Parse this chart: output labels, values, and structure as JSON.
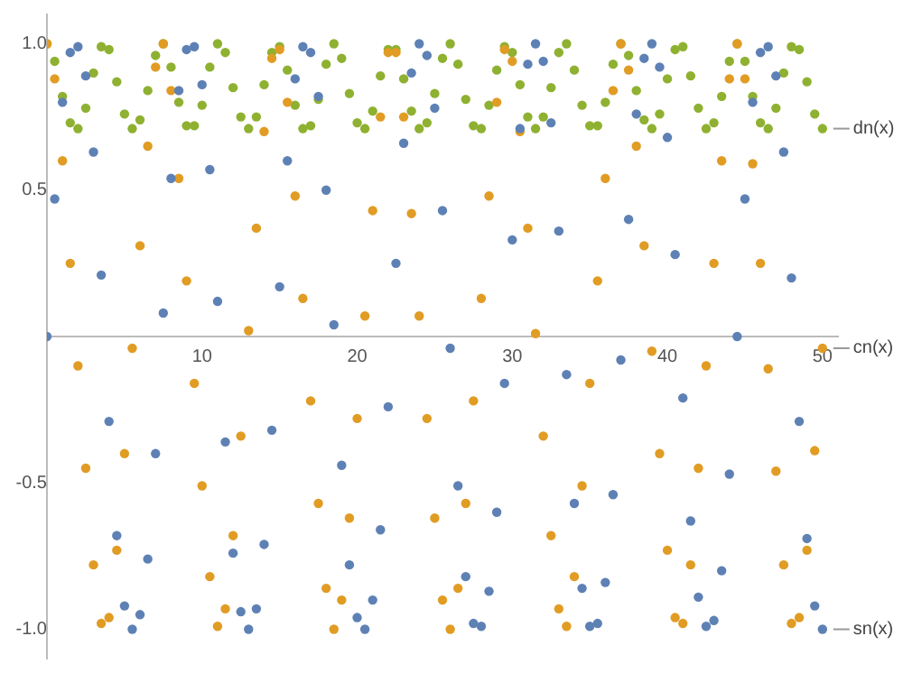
{
  "chart_data": {
    "type": "scatter",
    "marker": "circle",
    "x": [
      0,
      0.5,
      1,
      1.5,
      2,
      2.5,
      3,
      3.5,
      4,
      4.5,
      5,
      5.5,
      6,
      6.5,
      7,
      7.5,
      8,
      8.5,
      9,
      9.5,
      10,
      10.5,
      11,
      11.5,
      12,
      12.5,
      13,
      13.5,
      14,
      14.5,
      15,
      15.5,
      16,
      16.5,
      17,
      17.5,
      18,
      18.5,
      19,
      19.5,
      20,
      20.5,
      21,
      21.5,
      22,
      22.5,
      23,
      23.5,
      24,
      24.5,
      25,
      25.5,
      26,
      26.5,
      27,
      27.5,
      28,
      28.5,
      29,
      29.5,
      30,
      30.5,
      31,
      31.5,
      32,
      32.5,
      33,
      33.5,
      34,
      34.5,
      35,
      35.5,
      36,
      36.5,
      37,
      37.5,
      38,
      38.5,
      39,
      39.5,
      40,
      40.5,
      41,
      41.5,
      42,
      42.5,
      43,
      43.5,
      44,
      44.5,
      45,
      45.5,
      46,
      46.5,
      47,
      47.5,
      48,
      48.5,
      49,
      49.5,
      50
    ],
    "xlim": [
      0,
      51
    ],
    "ylim": [
      -1.1,
      1.1
    ],
    "xticks": [
      10,
      20,
      30,
      40,
      50
    ],
    "yticks": [
      {
        "value": -1,
        "label": "-1.0"
      },
      {
        "value": -0.5,
        "label": "-0.5"
      },
      {
        "value": 0.5,
        "label": "0.5"
      },
      {
        "value": 1,
        "label": "1.0"
      }
    ],
    "series": [
      {
        "name": "sn(x)",
        "color": "#5e81b5",
        "values": [
          0,
          0.47,
          0.8,
          0.97,
          0.99,
          0.89,
          0.63,
          0.21,
          -0.29,
          -0.68,
          -0.92,
          -1.0,
          -0.95,
          -0.76,
          -0.4,
          0.08,
          0.54,
          0.84,
          0.98,
          0.99,
          0.86,
          0.57,
          0.12,
          -0.36,
          -0.74,
          -0.94,
          -1.0,
          -0.93,
          -0.71,
          -0.32,
          0.17,
          0.6,
          0.88,
          0.99,
          0.97,
          0.82,
          0.5,
          0.04,
          -0.44,
          -0.78,
          -0.96,
          -1.0,
          -0.9,
          -0.66,
          -0.24,
          0.25,
          0.66,
          0.9,
          1.0,
          0.96,
          0.78,
          0.43,
          -0.04,
          -0.51,
          -0.82,
          -0.98,
          -0.99,
          -0.87,
          -0.6,
          -0.16,
          0.33,
          0.71,
          0.93,
          1.0,
          0.94,
          0.73,
          0.36,
          -0.13,
          -0.57,
          -0.86,
          -0.99,
          -0.98,
          -0.84,
          -0.54,
          -0.08,
          0.4,
          0.76,
          0.95,
          1.0,
          0.92,
          0.68,
          0.28,
          -0.21,
          -0.63,
          -0.89,
          -0.99,
          -0.97,
          -0.8,
          -0.47,
          0.0,
          0.47,
          0.8,
          0.97,
          0.99,
          0.89,
          0.63,
          0.2,
          -0.29,
          -0.69,
          -0.92,
          -1.0
        ]
      },
      {
        "name": "cn(x)",
        "color": "#e19c24",
        "values": [
          1,
          0.88,
          0.6,
          0.25,
          -0.1,
          -0.45,
          -0.78,
          -0.98,
          -0.96,
          -0.73,
          -0.4,
          -0.04,
          0.31,
          0.65,
          0.92,
          1.0,
          0.84,
          0.54,
          0.19,
          -0.16,
          -0.51,
          -0.82,
          -0.99,
          -0.93,
          -0.68,
          -0.34,
          0.02,
          0.37,
          0.7,
          0.95,
          0.98,
          0.8,
          0.48,
          0.13,
          -0.22,
          -0.57,
          -0.86,
          -1.0,
          -0.9,
          -0.62,
          -0.28,
          0.07,
          0.43,
          0.75,
          0.97,
          0.97,
          0.75,
          0.42,
          0.07,
          -0.28,
          -0.62,
          -0.9,
          -1.0,
          -0.86,
          -0.57,
          -0.22,
          0.13,
          0.48,
          0.8,
          0.98,
          0.94,
          0.7,
          0.37,
          0.01,
          -0.34,
          -0.68,
          -0.93,
          -0.99,
          -0.82,
          -0.51,
          -0.16,
          0.19,
          0.54,
          0.84,
          1.0,
          0.91,
          0.65,
          0.31,
          -0.05,
          -0.4,
          -0.73,
          -0.96,
          -0.98,
          -0.78,
          -0.45,
          -0.1,
          0.25,
          0.6,
          0.88,
          1.0,
          0.88,
          0.59,
          0.25,
          -0.11,
          -0.46,
          -0.78,
          -0.98,
          -0.96,
          -0.73,
          -0.39,
          -0.04
        ]
      },
      {
        "name": "dn(x)",
        "color": "#8fb131",
        "values": [
          1,
          0.94,
          0.82,
          0.73,
          0.71,
          0.78,
          0.9,
          0.99,
          0.98,
          0.87,
          0.76,
          0.71,
          0.74,
          0.84,
          0.96,
          1.0,
          0.92,
          0.8,
          0.72,
          0.72,
          0.79,
          0.92,
          1.0,
          0.97,
          0.85,
          0.75,
          0.71,
          0.75,
          0.86,
          0.97,
          0.99,
          0.91,
          0.79,
          0.71,
          0.72,
          0.81,
          0.93,
          1.0,
          0.95,
          0.83,
          0.73,
          0.71,
          0.77,
          0.89,
          0.98,
          0.98,
          0.88,
          0.77,
          0.71,
          0.73,
          0.83,
          0.95,
          1.0,
          0.93,
          0.81,
          0.72,
          0.71,
          0.79,
          0.91,
          0.99,
          0.97,
          0.86,
          0.75,
          0.71,
          0.75,
          0.85,
          0.97,
          1.0,
          0.91,
          0.79,
          0.72,
          0.72,
          0.8,
          0.93,
          1.0,
          0.96,
          0.84,
          0.74,
          0.71,
          0.76,
          0.88,
          0.98,
          0.99,
          0.89,
          0.78,
          0.71,
          0.73,
          0.82,
          0.94,
          1.0,
          0.94,
          0.82,
          0.73,
          0.71,
          0.78,
          0.9,
          0.99,
          0.98,
          0.87,
          0.76,
          0.71
        ]
      }
    ]
  }
}
